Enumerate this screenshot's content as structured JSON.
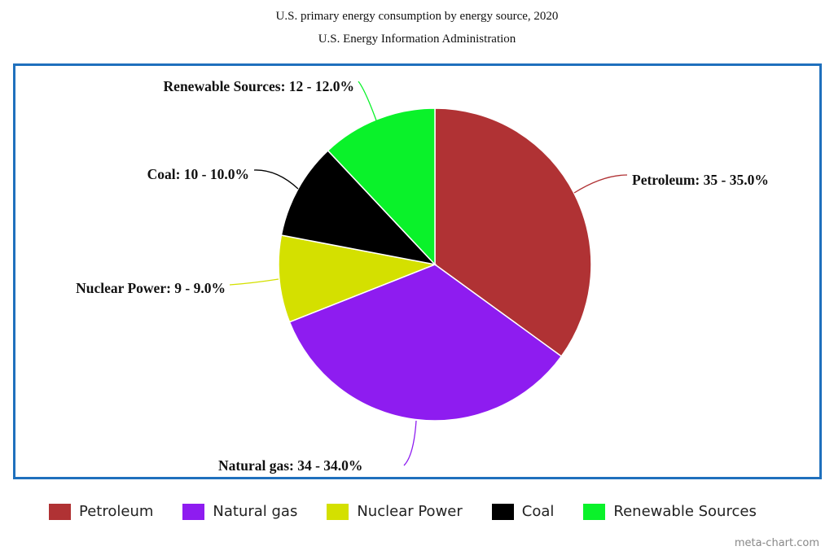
{
  "chart_data": {
    "type": "pie",
    "title": "U.S. primary energy consumption by energy source, 2020",
    "subtitle": "U.S. Energy Information Administration",
    "slices": [
      {
        "name": "Petroleum",
        "value": 35,
        "percent": "35.0%",
        "color": "#b03234",
        "label": "Petroleum: 35 - 35.0%"
      },
      {
        "name": "Natural gas",
        "value": 34,
        "percent": "34.0%",
        "color": "#8e1cf0",
        "label": "Natural gas: 34 - 34.0%"
      },
      {
        "name": "Nuclear Power",
        "value": 9,
        "percent": "9.0%",
        "color": "#d4e000",
        "label": "Nuclear Power: 9 - 9.0%"
      },
      {
        "name": "Coal",
        "value": 10,
        "percent": "10.0%",
        "color": "#000000",
        "label": "Coal: 10 - 10.0%"
      },
      {
        "name": "Renewable Sources",
        "value": 12,
        "percent": "12.0%",
        "color": "#0af22a",
        "label": "Renewable Sources: 12 - 12.0%"
      }
    ],
    "legend_position": "bottom"
  },
  "frame_color": "#1f70bd",
  "credit": "meta-chart.com"
}
